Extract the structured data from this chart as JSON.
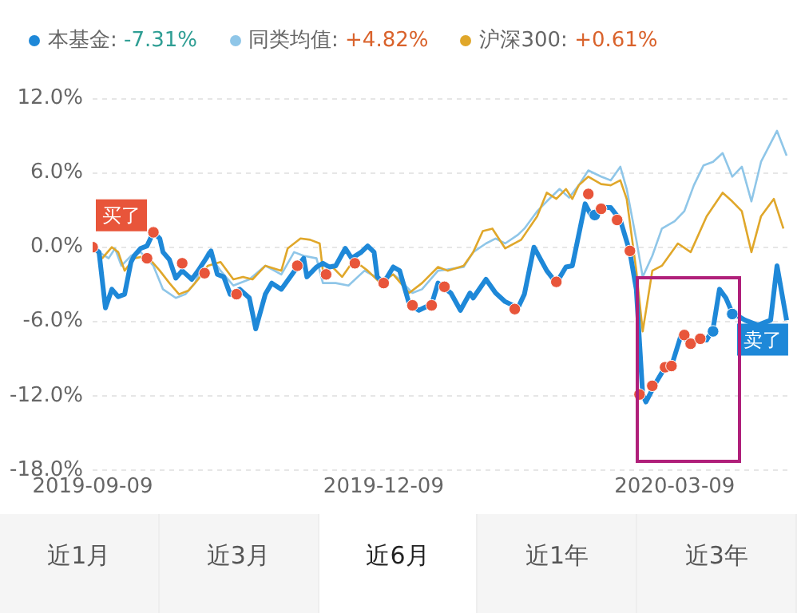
{
  "chart_data": {
    "type": "line",
    "legend": "top",
    "grid": "y",
    "marker": "none",
    "line_style": "solid",
    "xlim": [
      "2019-09-09",
      "2020-04-14"
    ],
    "xticks": [
      "2019-09-09",
      "2019-12-09",
      "2020-03-09"
    ],
    "ylim": [
      -18,
      12
    ],
    "yticks": [
      {
        "value": 12,
        "label": "12.0%"
      },
      {
        "value": 6,
        "label": "6.0%"
      },
      {
        "value": 0,
        "label": "0.0%"
      },
      {
        "value": -6,
        "label": "-6.0%"
      },
      {
        "value": -12,
        "label": "-12.0%"
      },
      {
        "value": -18,
        "label": "-18.0%"
      }
    ],
    "series": [
      {
        "name": "同类均值: +4.82%",
        "color": "#8fc6e8",
        "x": [
          "2019-09-09",
          "2019-09-11",
          "2019-09-14",
          "2019-09-16",
          "2019-09-18",
          "2019-09-21",
          "2019-09-24",
          "2019-09-28",
          "2019-10-01",
          "2019-10-05",
          "2019-10-08",
          "2019-10-11",
          "2019-10-15",
          "2019-10-19",
          "2019-10-23",
          "2019-10-28",
          "2019-11-02",
          "2019-11-07",
          "2019-11-11",
          "2019-11-14",
          "2019-11-18",
          "2019-11-20",
          "2019-11-24",
          "2019-11-28",
          "2019-12-03",
          "2019-12-08",
          "2019-12-12",
          "2019-12-14",
          "2019-12-18",
          "2019-12-21",
          "2019-12-26",
          "2019-12-29",
          "2020-01-03",
          "2020-01-06",
          "2020-01-10",
          "2020-01-13",
          "2020-01-16",
          "2020-01-20",
          "2020-01-22",
          "2020-01-26",
          "2020-01-29",
          "2020-02-02",
          "2020-02-05",
          "2020-02-08",
          "2020-02-11",
          "2020-02-15",
          "2020-02-18",
          "2020-02-21",
          "2020-02-23",
          "2020-02-26",
          "2020-02-28",
          "2020-03-02",
          "2020-03-05",
          "2020-03-09",
          "2020-03-12",
          "2020-03-15",
          "2020-03-18",
          "2020-03-21",
          "2020-03-24",
          "2020-03-27",
          "2020-03-30",
          "2020-04-02",
          "2020-04-05",
          "2020-04-08",
          "2020-04-10",
          "2020-04-13"
        ],
        "values": [
          0,
          -0.4,
          -0.9,
          -0.1,
          -1.5,
          -0.7,
          -0.4,
          -1.5,
          -3.4,
          -4.1,
          -3.8,
          -2.9,
          -0.4,
          -1.9,
          -3.1,
          -2.6,
          -1.5,
          -2.2,
          -0.4,
          -0.7,
          -0.9,
          -2.9,
          -2.9,
          -3.1,
          -1.9,
          -2.6,
          -2.2,
          -2.6,
          -3.7,
          -3.4,
          -1.9,
          -1.8,
          -1.6,
          -0.4,
          0.3,
          0.7,
          0.3,
          1.0,
          1.5,
          2.9,
          3.7,
          4.7,
          4.0,
          5.0,
          6.2,
          5.7,
          5.4,
          6.5,
          4.7,
          0.6,
          -2.4,
          -0.7,
          1.5,
          2.1,
          2.9,
          5.0,
          6.6,
          6.9,
          7.6,
          5.7,
          6.5,
          3.7,
          6.9,
          8.4,
          9.4,
          7.4
        ]
      },
      {
        "name": "沪深300: +0.61%",
        "color": "#e0a72a",
        "x": [
          "2019-09-09",
          "2019-09-12",
          "2019-09-15",
          "2019-09-17",
          "2019-09-19",
          "2019-09-22",
          "2019-09-26",
          "2019-09-30",
          "2019-10-03",
          "2019-10-06",
          "2019-10-09",
          "2019-10-12",
          "2019-10-15",
          "2019-10-19",
          "2019-10-23",
          "2019-10-26",
          "2019-10-29",
          "2019-11-02",
          "2019-11-07",
          "2019-11-09",
          "2019-11-13",
          "2019-11-16",
          "2019-11-19",
          "2019-11-20",
          "2019-11-23",
          "2019-11-26",
          "2019-11-29",
          "2019-12-02",
          "2019-12-04",
          "2019-12-08",
          "2019-12-12",
          "2019-12-17",
          "2019-12-21",
          "2019-12-26",
          "2019-12-29",
          "2020-01-03",
          "2020-01-06",
          "2020-01-09",
          "2020-01-12",
          "2020-01-16",
          "2020-01-21",
          "2020-01-26",
          "2020-01-29",
          "2020-02-01",
          "2020-02-04",
          "2020-02-06",
          "2020-02-08",
          "2020-02-11",
          "2020-02-15",
          "2020-02-18",
          "2020-02-21",
          "2020-02-23",
          "2020-02-26",
          "2020-02-28",
          "2020-03-02",
          "2020-03-05",
          "2020-03-10",
          "2020-03-14",
          "2020-03-19",
          "2020-03-24",
          "2020-03-27",
          "2020-03-30",
          "2020-04-02",
          "2020-04-05",
          "2020-04-09",
          "2020-04-12"
        ],
        "values": [
          0,
          -0.9,
          0,
          -0.4,
          -1.9,
          -0.9,
          -0.7,
          -1.9,
          -2.9,
          -3.8,
          -3.5,
          -2.6,
          -1.5,
          -1.2,
          -2.6,
          -2.4,
          -2.6,
          -1.5,
          -1.9,
          -0.1,
          0.7,
          0.6,
          0.3,
          -1.9,
          -1.6,
          -2.4,
          -1.3,
          -1.5,
          -1.9,
          -2.9,
          -2.2,
          -3.7,
          -2.9,
          -1.6,
          -1.9,
          -1.5,
          -0.4,
          1.3,
          1.5,
          -0.1,
          0.6,
          2.5,
          4.4,
          3.9,
          4.7,
          3.9,
          5.0,
          5.7,
          5.1,
          5.0,
          5.4,
          3.9,
          -1.9,
          -6.8,
          -1.9,
          -1.5,
          0.3,
          -0.4,
          2.5,
          4.4,
          3.7,
          2.9,
          -0.4,
          2.5,
          3.9,
          1.5
        ]
      },
      {
        "name": "本基金: -7.31%",
        "color": "#1e88d8",
        "x": [
          "2019-09-09",
          "2019-09-11",
          "2019-09-13",
          "2019-09-15",
          "2019-09-17",
          "2019-09-19",
          "2019-09-21",
          "2019-09-22",
          "2019-09-24",
          "2019-09-26",
          "2019-09-28",
          "2019-09-30",
          "2019-10-01",
          "2019-10-03",
          "2019-10-05",
          "2019-10-07",
          "2019-10-10",
          "2019-10-12",
          "2019-10-16",
          "2019-10-18",
          "2019-10-20",
          "2019-10-22",
          "2019-10-25",
          "2019-10-28",
          "2019-10-30",
          "2019-11-02",
          "2019-11-04",
          "2019-11-07",
          "2019-11-12",
          "2019-11-14",
          "2019-11-15",
          "2019-11-18",
          "2019-11-20",
          "2019-11-22",
          "2019-11-24",
          "2019-11-27",
          "2019-11-29",
          "2019-12-02",
          "2019-12-04",
          "2019-12-06",
          "2019-12-07",
          "2019-12-09",
          "2019-12-12",
          "2019-12-14",
          "2019-12-17",
          "2019-12-20",
          "2019-12-24",
          "2019-12-26",
          "2019-12-30",
          "2020-01-02",
          "2020-01-05",
          "2020-01-06",
          "2020-01-10",
          "2020-01-13",
          "2020-01-16",
          "2020-01-20",
          "2020-01-22",
          "2020-01-25",
          "2020-01-29",
          "2020-02-01",
          "2020-02-04",
          "2020-02-06",
          "2020-02-10",
          "2020-02-12",
          "2020-02-15",
          "2020-02-18",
          "2020-02-21",
          "2020-02-24",
          "2020-02-26",
          "2020-02-28",
          "2020-02-29",
          "2020-03-03",
          "2020-03-06",
          "2020-03-08",
          "2020-03-11",
          "2020-03-14",
          "2020-03-17",
          "2020-03-19",
          "2020-03-21",
          "2020-03-23",
          "2020-03-25",
          "2020-03-27",
          "2020-03-31",
          "2020-04-04",
          "2020-04-08",
          "2020-04-10",
          "2020-04-13"
        ],
        "values": [
          0,
          -0.4,
          -4.9,
          -3.4,
          -4.0,
          -3.8,
          -1.2,
          -0.7,
          -0.1,
          0.1,
          1.2,
          0.7,
          -0.4,
          -1.0,
          -2.5,
          -1.9,
          -2.6,
          -1.9,
          -0.3,
          -2.2,
          -2.4,
          -3.8,
          -3.4,
          -4.1,
          -6.6,
          -3.8,
          -2.9,
          -3.4,
          -1.6,
          -0.9,
          -2.4,
          -1.6,
          -1.3,
          -1.6,
          -1.5,
          -0.1,
          -0.9,
          -0.4,
          0.1,
          -0.4,
          -2.4,
          -2.9,
          -1.6,
          -1.9,
          -4.6,
          -5.1,
          -4.6,
          -2.9,
          -3.7,
          -5.1,
          -3.7,
          -4.1,
          -2.6,
          -3.7,
          -4.4,
          -4.9,
          -3.8,
          0,
          -1.9,
          -2.9,
          -1.6,
          -1.5,
          3.5,
          2.5,
          3.2,
          3.2,
          2.2,
          -0.4,
          -3.4,
          -11.9,
          -12.5,
          -11.0,
          -9.7,
          -9.6,
          -7.1,
          -7.8,
          -7.4,
          -7.5,
          -6.6,
          -3.4,
          -4.1,
          -5.3,
          -5.9,
          -6.3,
          -5.9,
          -1.5,
          -5.9
        ]
      },
      {
        "type": "scatter",
        "marker": "circle",
        "color": "#e8553a",
        "x": [
          "2019-09-09",
          "2019-09-26",
          "2019-09-28",
          "2019-10-07",
          "2019-10-14",
          "2019-10-24",
          "2019-11-12",
          "2019-11-21",
          "2019-11-30",
          "2019-12-09",
          "2019-12-18",
          "2019-12-24",
          "2019-12-28",
          "2020-01-19",
          "2020-02-01",
          "2020-02-11",
          "2020-02-15",
          "2020-02-20",
          "2020-02-24",
          "2020-02-27",
          "2020-03-02",
          "2020-03-06",
          "2020-03-08",
          "2020-03-12",
          "2020-03-14",
          "2020-03-17"
        ],
        "values": [
          0,
          -0.9,
          1.2,
          -1.3,
          -2.1,
          -3.8,
          -1.5,
          -2.2,
          -1.3,
          -2.9,
          -4.7,
          -4.7,
          -3.2,
          -5.0,
          -2.8,
          4.3,
          3.1,
          2.2,
          -0.3,
          -11.9,
          -11.2,
          -9.7,
          -9.6,
          -7.1,
          -7.8,
          -7.4
        ]
      },
      {
        "type": "scatter",
        "marker": "circle",
        "color": "#1e88d8",
        "x": [
          "2020-02-13",
          "2020-03-21",
          "2020-03-27"
        ],
        "values": [
          2.6,
          -6.8,
          -5.4
        ]
      }
    ],
    "annotations": [
      {
        "text": "买了",
        "x": "2019-09-09",
        "y": 0
      },
      {
        "text": "卖了",
        "x": "2020-03-27",
        "y": -5.4
      },
      "近1月",
      "近3月",
      "近6月",
      "近1年",
      "近3年"
    ]
  }
}
